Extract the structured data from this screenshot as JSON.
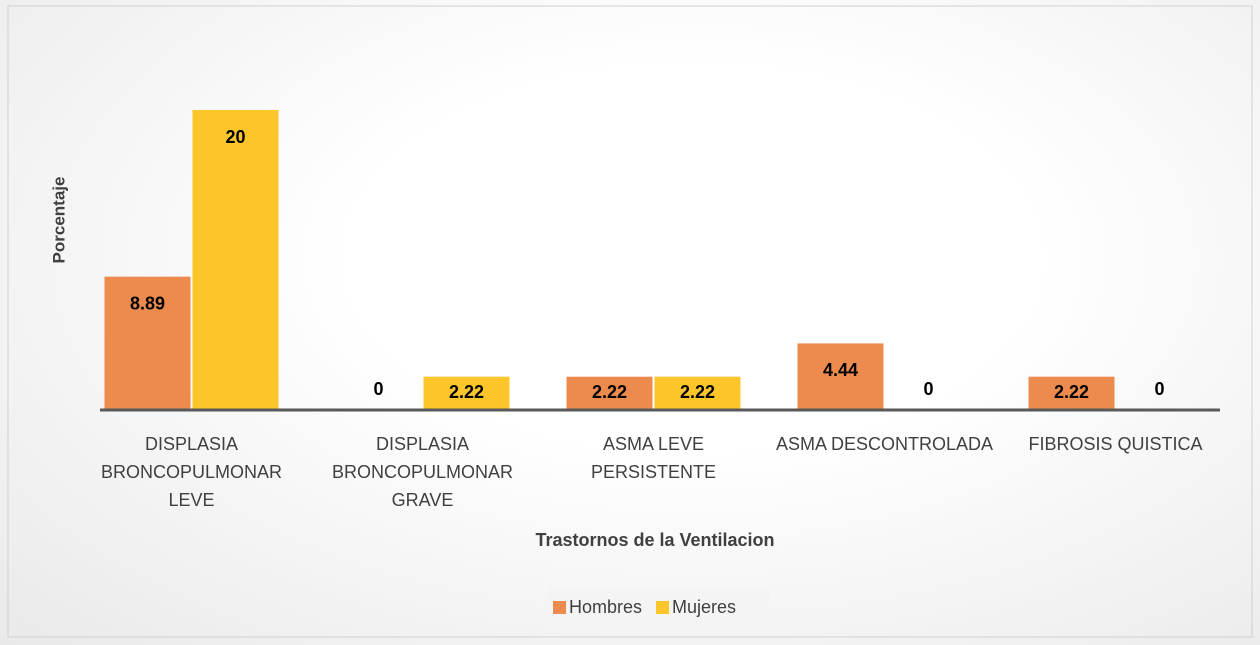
{
  "chart_data": {
    "type": "bar",
    "x_label": "Trastornos de la Ventilacion",
    "y_label": "Porcentaje",
    "categories": [
      "DISPLASIA BRONCOPULMONAR LEVE",
      "DISPLASIA BRONCOPULMONAR GRAVE",
      "ASMA LEVE PERSISTENTE",
      "ASMA DESCONTROLADA",
      "FIBROSIS QUISTICA"
    ],
    "series": [
      {
        "name": "Hombres",
        "color": "#ed8b4e",
        "values": [
          8.89,
          0,
          2.22,
          4.44,
          2.22
        ]
      },
      {
        "name": "Mujeres",
        "color": "#fcc62b",
        "values": [
          20,
          2.22,
          2.22,
          0,
          0
        ]
      }
    ],
    "ylim": [
      0,
      25
    ],
    "legend": "bottom"
  }
}
